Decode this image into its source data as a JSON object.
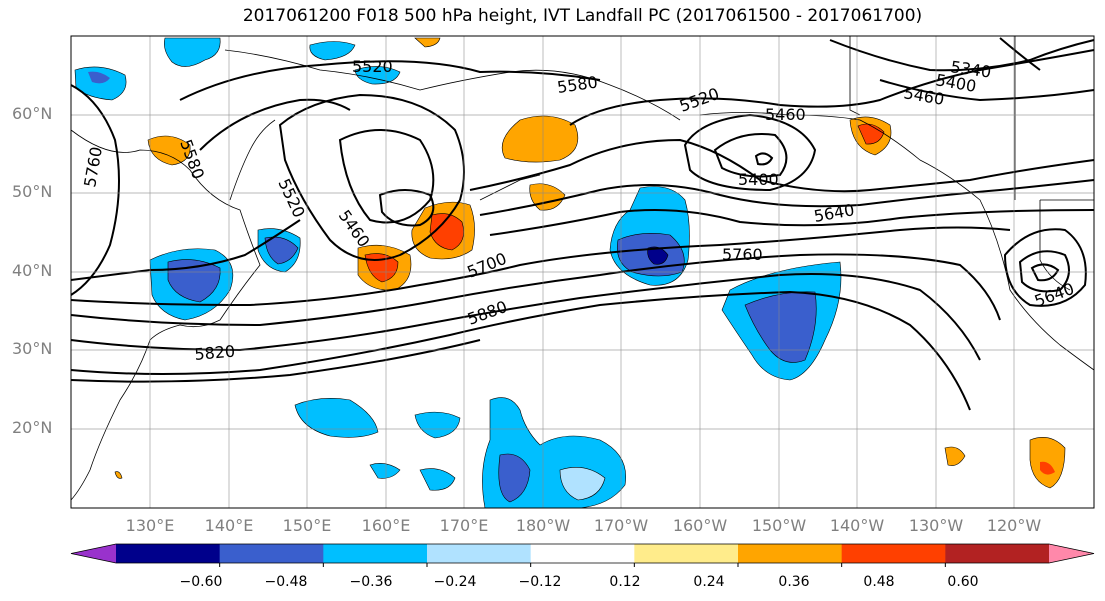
{
  "title": "2017061200 F018 500 hPa height, IVT Landfall PC (2017061500 - 2017061700)",
  "lat_labels": [
    "60°N",
    "50°N",
    "40°N",
    "30°N",
    "20°N"
  ],
  "lon_labels": [
    "130°E",
    "140°E",
    "150°E",
    "160°E",
    "170°E",
    "180°W",
    "170°W",
    "160°W",
    "150°W",
    "140°W",
    "130°W",
    "120°W"
  ],
  "contour_labels": [
    "5520",
    "5580",
    "5520",
    "5460",
    "5340",
    "5400",
    "5460",
    "5760",
    "5580",
    "5520",
    "5460",
    "5400",
    "5640",
    "5700",
    "5760",
    "5880",
    "5820",
    "5640"
  ],
  "colorbar": {
    "labels": [
      "−0.60",
      "−0.48",
      "−0.36",
      "−0.24",
      "−0.12",
      "0.12",
      "0.24",
      "0.36",
      "0.48",
      "0.60"
    ],
    "colors": [
      "#9932cc",
      "#00008b",
      "#3a5fcd",
      "#00bfff",
      "#b0e2ff",
      "#ffffff",
      "#ffec8b",
      "#ffa500",
      "#ff4000",
      "#b22222",
      "#ff88aa"
    ]
  },
  "shading": {
    "negative": [
      "#00bfff",
      "#3a5fcd",
      "#00008b"
    ],
    "positive": [
      "#ffa500",
      "#ff4000"
    ]
  }
}
